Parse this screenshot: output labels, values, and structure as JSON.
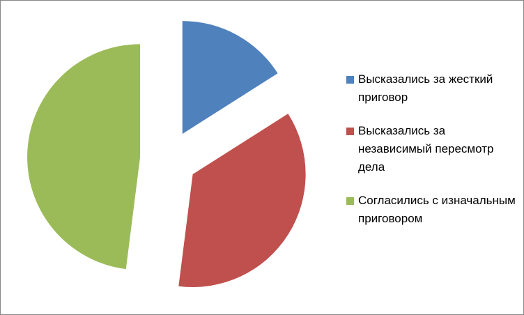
{
  "chart_data": {
    "type": "pie",
    "exploded": true,
    "legend": "right",
    "series": [
      {
        "name": "Высказались за жесткий приговор",
        "color": "#4f81bd",
        "values": [
          16
        ]
      },
      {
        "name": "Высказались за независимый пересмотр дела",
        "color": "#c0504d",
        "values": [
          36
        ]
      },
      {
        "name": "Согласились с изначальным приговором",
        "color": "#9bbb59",
        "values": [
          48
        ]
      }
    ]
  }
}
